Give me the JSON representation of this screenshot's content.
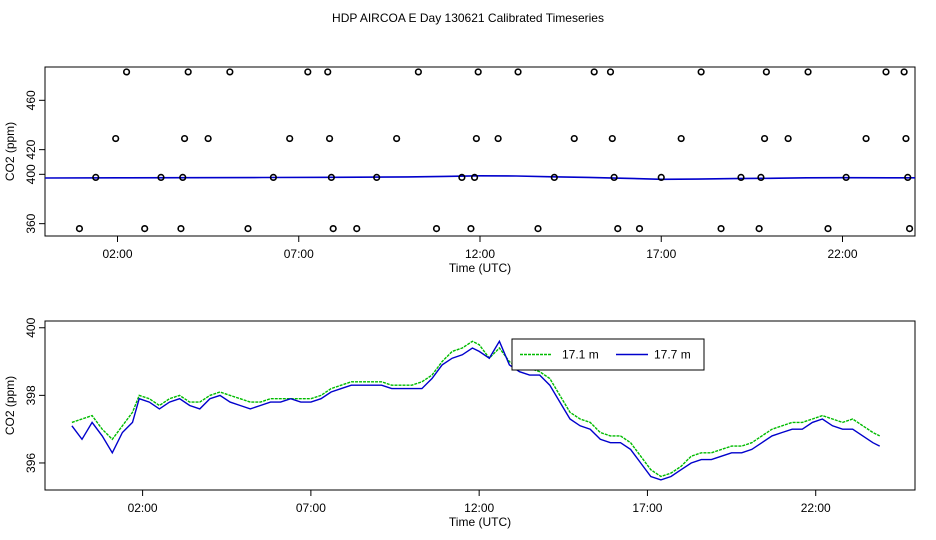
{
  "title": "HDP AIRCOA E  Day 130621  Calibrated Timeseries",
  "chart_data": [
    {
      "type": "scatter",
      "xlabel": "Time (UTC)",
      "ylabel": "CO2 (ppm)",
      "xlim": [
        0,
        24
      ],
      "ylim": [
        350,
        487
      ],
      "x_ticks": [
        2,
        7,
        12,
        17,
        22
      ],
      "x_tick_labels": [
        "02:00",
        "07:00",
        "12:00",
        "17:00",
        "22:00"
      ],
      "y_ticks": [
        360,
        400,
        420,
        460
      ],
      "y_tick_labels": [
        "360",
        "400",
        "420",
        "460"
      ],
      "colors": {
        "points": "#000000",
        "line": "#0000cc"
      },
      "points": [
        [
          0.95,
          356
        ],
        [
          1.4,
          397.5
        ],
        [
          1.95,
          429
        ],
        [
          2.25,
          483
        ],
        [
          2.75,
          356
        ],
        [
          3.2,
          397.5
        ],
        [
          3.75,
          356
        ],
        [
          3.8,
          397.5
        ],
        [
          3.85,
          429
        ],
        [
          3.95,
          483
        ],
        [
          4.5,
          429
        ],
        [
          5.1,
          483
        ],
        [
          5.6,
          356
        ],
        [
          6.3,
          397.5
        ],
        [
          6.75,
          429
        ],
        [
          7.25,
          483
        ],
        [
          7.8,
          483
        ],
        [
          7.85,
          429
        ],
        [
          7.95,
          356
        ],
        [
          7.9,
          397.5
        ],
        [
          8.6,
          356
        ],
        [
          9.15,
          397.5
        ],
        [
          9.7,
          429
        ],
        [
          10.3,
          483
        ],
        [
          10.8,
          356
        ],
        [
          11.5,
          397.5
        ],
        [
          11.75,
          356
        ],
        [
          11.85,
          397.5
        ],
        [
          11.9,
          429
        ],
        [
          11.95,
          483
        ],
        [
          12.5,
          429
        ],
        [
          13.05,
          483
        ],
        [
          13.6,
          356
        ],
        [
          14.05,
          397.5
        ],
        [
          14.6,
          429
        ],
        [
          15.15,
          483
        ],
        [
          15.6,
          483
        ],
        [
          15.65,
          429
        ],
        [
          15.7,
          397.5
        ],
        [
          15.8,
          356
        ],
        [
          16.4,
          356
        ],
        [
          17.0,
          397.5
        ],
        [
          17.55,
          429
        ],
        [
          18.1,
          483
        ],
        [
          18.65,
          356
        ],
        [
          19.2,
          397.5
        ],
        [
          19.7,
          356
        ],
        [
          19.75,
          397.5
        ],
        [
          19.85,
          429
        ],
        [
          19.9,
          483
        ],
        [
          20.5,
          429
        ],
        [
          21.05,
          483
        ],
        [
          21.6,
          356
        ],
        [
          22.1,
          397.5
        ],
        [
          22.65,
          429
        ],
        [
          23.2,
          483
        ],
        [
          23.7,
          483
        ],
        [
          23.75,
          429
        ],
        [
          23.8,
          397.5
        ],
        [
          23.85,
          356
        ]
      ],
      "line": [
        [
          0,
          397.0
        ],
        [
          2,
          397.2
        ],
        [
          4,
          397.3
        ],
        [
          6,
          397.4
        ],
        [
          8,
          397.6
        ],
        [
          10,
          397.9
        ],
        [
          11,
          398.3
        ],
        [
          12,
          398.8
        ],
        [
          13,
          398.6
        ],
        [
          14,
          398.0
        ],
        [
          15,
          397.5
        ],
        [
          16,
          396.8
        ],
        [
          17,
          396.0
        ],
        [
          18,
          396.1
        ],
        [
          19,
          396.5
        ],
        [
          20,
          396.8
        ],
        [
          21,
          397.2
        ],
        [
          22,
          397.3
        ],
        [
          24,
          397.2
        ]
      ]
    },
    {
      "type": "line",
      "xlabel": "Time (UTC)",
      "ylabel": "CO2 (ppm)",
      "xlim": [
        -0.9,
        24.95
      ],
      "ylim": [
        395.2,
        400.2
      ],
      "x_ticks": [
        2,
        7,
        12,
        17,
        22
      ],
      "x_tick_labels": [
        "02:00",
        "07:00",
        "12:00",
        "17:00",
        "22:00"
      ],
      "y_ticks": [
        396,
        398,
        400
      ],
      "y_tick_labels": [
        "396",
        "398",
        "400"
      ],
      "legend_position": "top-center",
      "series": [
        {
          "name": "17.1 m",
          "color": "#00bb00",
          "points": [
            [
              -0.1,
              397.2
            ],
            [
              0.2,
              397.3
            ],
            [
              0.5,
              397.4
            ],
            [
              0.8,
              397.0
            ],
            [
              1.1,
              396.7
            ],
            [
              1.4,
              397.1
            ],
            [
              1.7,
              397.5
            ],
            [
              1.9,
              398.0
            ],
            [
              2.2,
              397.9
            ],
            [
              2.5,
              397.7
            ],
            [
              2.8,
              397.9
            ],
            [
              3.1,
              398.0
            ],
            [
              3.4,
              397.8
            ],
            [
              3.7,
              397.8
            ],
            [
              4.0,
              398.0
            ],
            [
              4.3,
              398.1
            ],
            [
              4.6,
              398.0
            ],
            [
              4.9,
              397.9
            ],
            [
              5.2,
              397.8
            ],
            [
              5.5,
              397.8
            ],
            [
              5.8,
              397.9
            ],
            [
              6.1,
              397.9
            ],
            [
              6.4,
              397.9
            ],
            [
              6.7,
              397.9
            ],
            [
              7.0,
              397.9
            ],
            [
              7.3,
              398.0
            ],
            [
              7.6,
              398.2
            ],
            [
              7.9,
              398.3
            ],
            [
              8.2,
              398.4
            ],
            [
              8.5,
              398.4
            ],
            [
              8.8,
              398.4
            ],
            [
              9.1,
              398.4
            ],
            [
              9.4,
              398.3
            ],
            [
              9.7,
              398.3
            ],
            [
              10.0,
              398.3
            ],
            [
              10.3,
              398.4
            ],
            [
              10.6,
              398.6
            ],
            [
              10.9,
              399.0
            ],
            [
              11.2,
              399.3
            ],
            [
              11.5,
              399.4
            ],
            [
              11.8,
              399.6
            ],
            [
              12.0,
              399.5
            ],
            [
              12.3,
              399.1
            ],
            [
              12.6,
              399.4
            ],
            [
              12.9,
              399.0
            ],
            [
              13.2,
              398.8
            ],
            [
              13.5,
              398.8
            ],
            [
              13.8,
              398.7
            ],
            [
              14.1,
              398.5
            ],
            [
              14.4,
              398.0
            ],
            [
              14.7,
              397.5
            ],
            [
              15.0,
              397.3
            ],
            [
              15.3,
              397.2
            ],
            [
              15.6,
              396.9
            ],
            [
              15.9,
              396.8
            ],
            [
              16.2,
              396.8
            ],
            [
              16.5,
              396.6
            ],
            [
              16.8,
              396.2
            ],
            [
              17.1,
              395.8
            ],
            [
              17.4,
              395.6
            ],
            [
              17.7,
              395.7
            ],
            [
              18.0,
              395.9
            ],
            [
              18.3,
              396.2
            ],
            [
              18.6,
              396.3
            ],
            [
              18.9,
              396.3
            ],
            [
              19.2,
              396.4
            ],
            [
              19.5,
              396.5
            ],
            [
              19.8,
              396.5
            ],
            [
              20.1,
              396.6
            ],
            [
              20.4,
              396.8
            ],
            [
              20.7,
              397.0
            ],
            [
              21.0,
              397.1
            ],
            [
              21.3,
              397.2
            ],
            [
              21.6,
              397.2
            ],
            [
              21.9,
              397.3
            ],
            [
              22.2,
              397.4
            ],
            [
              22.5,
              397.3
            ],
            [
              22.8,
              397.2
            ],
            [
              23.1,
              397.3
            ],
            [
              23.4,
              397.1
            ],
            [
              23.7,
              396.9
            ],
            [
              23.9,
              396.8
            ]
          ]
        },
        {
          "name": "17.7 m",
          "color": "#0000cc",
          "points": [
            [
              -0.1,
              397.1
            ],
            [
              0.2,
              396.7
            ],
            [
              0.5,
              397.2
            ],
            [
              0.8,
              396.8
            ],
            [
              1.1,
              396.3
            ],
            [
              1.4,
              396.9
            ],
            [
              1.7,
              397.2
            ],
            [
              1.9,
              397.9
            ],
            [
              2.2,
              397.8
            ],
            [
              2.5,
              397.6
            ],
            [
              2.8,
              397.8
            ],
            [
              3.1,
              397.9
            ],
            [
              3.4,
              397.7
            ],
            [
              3.7,
              397.6
            ],
            [
              4.0,
              397.9
            ],
            [
              4.3,
              398.0
            ],
            [
              4.6,
              397.8
            ],
            [
              4.9,
              397.7
            ],
            [
              5.2,
              397.6
            ],
            [
              5.5,
              397.7
            ],
            [
              5.8,
              397.8
            ],
            [
              6.1,
              397.8
            ],
            [
              6.4,
              397.9
            ],
            [
              6.7,
              397.8
            ],
            [
              7.0,
              397.8
            ],
            [
              7.3,
              397.9
            ],
            [
              7.6,
              398.1
            ],
            [
              7.9,
              398.2
            ],
            [
              8.2,
              398.3
            ],
            [
              8.5,
              398.3
            ],
            [
              8.8,
              398.3
            ],
            [
              9.1,
              398.3
            ],
            [
              9.4,
              398.2
            ],
            [
              9.7,
              398.2
            ],
            [
              10.0,
              398.2
            ],
            [
              10.3,
              398.2
            ],
            [
              10.6,
              398.5
            ],
            [
              10.9,
              398.9
            ],
            [
              11.2,
              399.1
            ],
            [
              11.5,
              399.2
            ],
            [
              11.8,
              399.4
            ],
            [
              12.0,
              399.3
            ],
            [
              12.3,
              399.1
            ],
            [
              12.6,
              399.6
            ],
            [
              12.9,
              398.9
            ],
            [
              13.2,
              398.7
            ],
            [
              13.5,
              398.6
            ],
            [
              13.8,
              398.6
            ],
            [
              14.1,
              398.3
            ],
            [
              14.4,
              397.8
            ],
            [
              14.7,
              397.3
            ],
            [
              15.0,
              397.1
            ],
            [
              15.3,
              397.0
            ],
            [
              15.6,
              396.7
            ],
            [
              15.9,
              396.6
            ],
            [
              16.2,
              396.6
            ],
            [
              16.5,
              396.4
            ],
            [
              16.8,
              396.0
            ],
            [
              17.1,
              395.6
            ],
            [
              17.4,
              395.5
            ],
            [
              17.7,
              395.6
            ],
            [
              18.0,
              395.8
            ],
            [
              18.3,
              396.0
            ],
            [
              18.6,
              396.1
            ],
            [
              18.9,
              396.1
            ],
            [
              19.2,
              396.2
            ],
            [
              19.5,
              396.3
            ],
            [
              19.8,
              396.3
            ],
            [
              20.1,
              396.4
            ],
            [
              20.4,
              396.6
            ],
            [
              20.7,
              396.8
            ],
            [
              21.0,
              396.9
            ],
            [
              21.3,
              397.0
            ],
            [
              21.6,
              397.0
            ],
            [
              21.9,
              397.2
            ],
            [
              22.2,
              397.3
            ],
            [
              22.5,
              397.1
            ],
            [
              22.8,
              397.0
            ],
            [
              23.1,
              397.0
            ],
            [
              23.4,
              396.8
            ],
            [
              23.7,
              396.6
            ],
            [
              23.9,
              396.5
            ]
          ]
        }
      ]
    }
  ]
}
